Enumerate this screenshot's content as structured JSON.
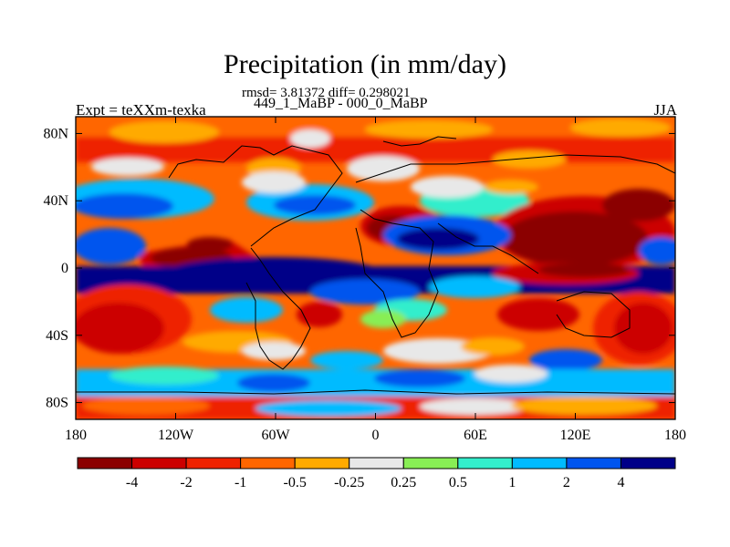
{
  "header": {
    "title": "Precipitation (in mm/day)",
    "stats": "rmsd= 3.81372 diff= 0.298021",
    "subtitle": "449_1_MaBP - 000_0_MaBP",
    "left_label": "Expt = teXXm-texka",
    "right_label": "JJA"
  },
  "map": {
    "lat_ticks": [
      "80N",
      "40N",
      "0",
      "40S",
      "80S"
    ],
    "lon_ticks": [
      "180",
      "120W",
      "60W",
      "0",
      "60E",
      "120E",
      "180"
    ],
    "lat_values": [
      80,
      40,
      0,
      -40,
      -80
    ],
    "lon_values": [
      -180,
      -120,
      -60,
      0,
      60,
      120,
      180
    ],
    "lat_range": [
      -90,
      90
    ],
    "lon_range": [
      -180,
      180
    ]
  },
  "colorbar": {
    "colors": [
      "#8b0000",
      "#cc0000",
      "#ee2200",
      "#ff6600",
      "#ffaa00",
      "#e8e8e8",
      "#88ee55",
      "#33eecc",
      "#00bbff",
      "#0055ee",
      "#000088"
    ],
    "labels": [
      "-4",
      "-2",
      "-1",
      "-0.5",
      "-0.25",
      "0.25",
      "0.5",
      "1",
      "2",
      "4"
    ]
  }
}
